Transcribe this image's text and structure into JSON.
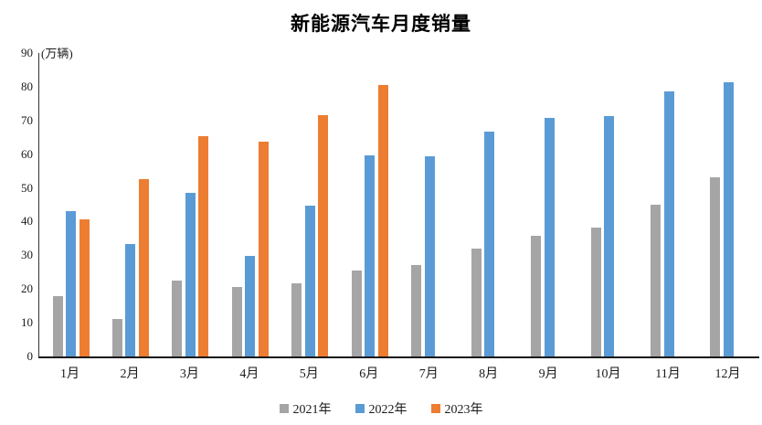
{
  "chart_data": {
    "type": "bar",
    "title": "新能源汽车月度销量",
    "unit_label": "(万辆)",
    "categories": [
      "1月",
      "2月",
      "3月",
      "4月",
      "5月",
      "6月",
      "7月",
      "8月",
      "9月",
      "10月",
      "11月",
      "12月"
    ],
    "series": [
      {
        "name": "2021年",
        "color": "#A5A5A5",
        "values": [
          17.9,
          11.0,
          22.6,
          20.6,
          21.7,
          25.6,
          27.1,
          32.1,
          35.7,
          38.3,
          45.0,
          53.1
        ]
      },
      {
        "name": "2022年",
        "color": "#5B9BD5",
        "values": [
          43.1,
          33.4,
          48.4,
          29.9,
          44.7,
          59.6,
          59.3,
          66.6,
          70.8,
          71.4,
          78.6,
          81.4
        ]
      },
      {
        "name": "2023年",
        "color": "#ED7D31",
        "values": [
          40.8,
          52.5,
          65.3,
          63.6,
          71.7,
          80.6,
          null,
          null,
          null,
          null,
          null,
          null
        ]
      }
    ],
    "ylim": [
      0,
      90
    ],
    "ytick_step": 10,
    "yticks": [
      0,
      10,
      20,
      30,
      40,
      50,
      60,
      70,
      80,
      90
    ],
    "grid": false,
    "legend_position": "bottom",
    "axis_color": "#1a1a1a",
    "text_color": "#1a1a1a"
  }
}
